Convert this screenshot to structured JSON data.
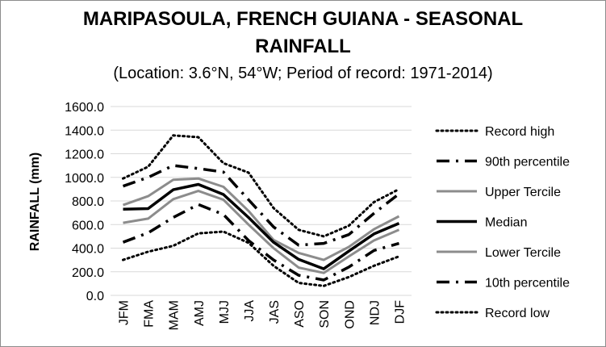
{
  "chart_data": {
    "type": "line",
    "title_line1": "MARIPASOULA, FRENCH GUIANA - SEASONAL",
    "title_line2": "RAINFALL",
    "subtitle": "(Location: 3.6°N, 54°W; Period of record: 1971-2014)",
    "xlabel": "",
    "ylabel": "RAINFALL (mm)",
    "ylim": [
      0,
      1600
    ],
    "yticks": [
      "0.0",
      "200.0",
      "400.0",
      "600.0",
      "800.0",
      "1000.0",
      "1200.0",
      "1400.0",
      "1600.0"
    ],
    "categories": [
      "JFM",
      "FMA",
      "MAM",
      "AMJ",
      "MJJ",
      "JJA",
      "JAS",
      "ASO",
      "SON",
      "OND",
      "NDJ",
      "DJF"
    ],
    "legend_position": "right",
    "grid": "horizontal",
    "series": [
      {
        "name": "Record high",
        "values": [
          990,
          1090,
          1355,
          1340,
          1120,
          1040,
          740,
          555,
          500,
          590,
          790,
          900
        ]
      },
      {
        "name": "90th percentile",
        "values": [
          925,
          1000,
          1100,
          1075,
          1045,
          810,
          580,
          425,
          440,
          515,
          695,
          860
        ]
      },
      {
        "name": "Upper Tercile",
        "values": [
          765,
          840,
          980,
          990,
          920,
          715,
          470,
          360,
          300,
          410,
          560,
          670
        ]
      },
      {
        "name": "Median",
        "values": [
          730,
          735,
          895,
          940,
          855,
          660,
          450,
          305,
          225,
          375,
          520,
          610
        ]
      },
      {
        "name": "Lower Tercile",
        "values": [
          615,
          650,
          815,
          885,
          810,
          600,
          400,
          235,
          190,
          330,
          465,
          555
        ]
      },
      {
        "name": "10th percentile",
        "values": [
          450,
          530,
          660,
          770,
          685,
          465,
          300,
          170,
          130,
          240,
          380,
          440
        ]
      },
      {
        "name": "Record low",
        "values": [
          300,
          370,
          420,
          525,
          540,
          445,
          250,
          105,
          80,
          155,
          250,
          330
        ]
      }
    ]
  }
}
